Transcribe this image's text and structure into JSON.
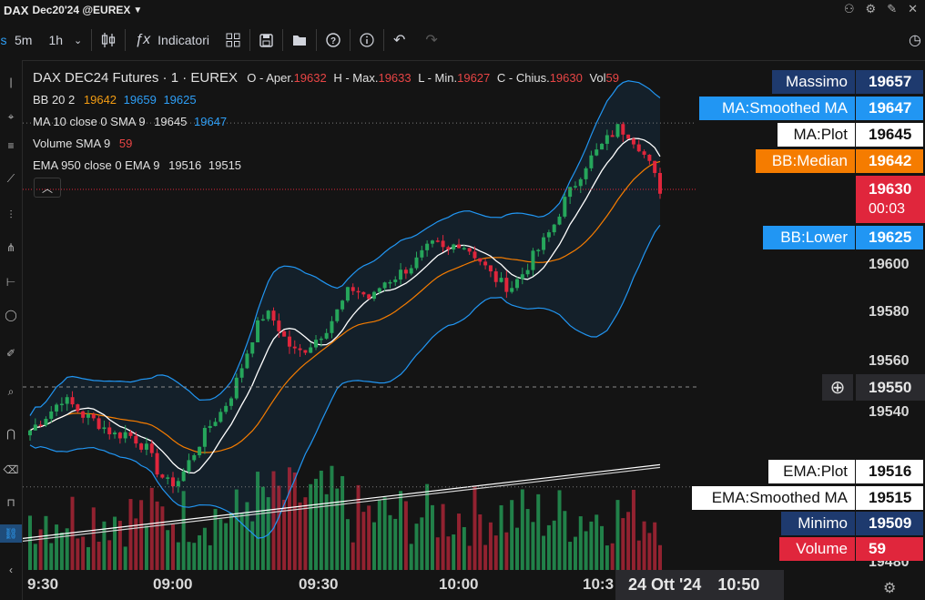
{
  "window": {
    "symbol": "DAX",
    "contract": "Dec20'24 @EUREX"
  },
  "toolbar": {
    "interval_5m": "5m",
    "interval_1h": "1h",
    "indicators_label": "Indicatori"
  },
  "legend": {
    "title": "DAX DEC24 Futures · 1 · EUREX",
    "o_label": "O - Aper.",
    "o_val": "19632",
    "h_label": "H - Max.",
    "h_val": "19633",
    "l_label": "L - Min.",
    "l_val": "19627",
    "c_label": "C - Chius.",
    "c_val": "19630",
    "vol_label": "Vol",
    "vol_val": "59",
    "bb_label": "BB 20 2",
    "bb_v1": "19642",
    "bb_v2": "19659",
    "bb_v3": "19625",
    "ma_label": "MA 10 close 0 SMA 9",
    "ma_v1": "19645",
    "ma_v2": "19647",
    "volsma_label": "Volume SMA 9",
    "volsma_v": "59",
    "ema_label": "EMA 950 close 0 EMA 9",
    "ema_v1": "19516",
    "ema_v2": "19515"
  },
  "price_axis": {
    "ticks": [
      "19600",
      "19580",
      "19560",
      "19540",
      "19480"
    ],
    "crosshair_price": "19550"
  },
  "tags": [
    {
      "name": "Massimo",
      "value": "19657",
      "nbg": "#1e3a6e",
      "ncol": "#ffffff",
      "vbg": "#1e3a6e",
      "vcol": "#ffffff"
    },
    {
      "name": "MA:Smoothed MA",
      "value": "19647",
      "nbg": "#2196f3",
      "ncol": "#ffffff",
      "vbg": "#2196f3",
      "vcol": "#ffffff"
    },
    {
      "name": "MA:Plot",
      "value": "19645",
      "nbg": "#ffffff",
      "ncol": "#111111",
      "vbg": "#ffffff",
      "vcol": "#111111"
    },
    {
      "name": "BB:Median",
      "value": "19642",
      "nbg": "#f57c00",
      "ncol": "#ffffff",
      "vbg": "#f57c00",
      "vcol": "#ffffff"
    },
    {
      "name": "BB:Lower",
      "value": "19625",
      "nbg": "#2196f3",
      "ncol": "#ffffff",
      "vbg": "#2196f3",
      "vcol": "#ffffff"
    },
    {
      "name": "EMA:Plot",
      "value": "19516",
      "nbg": "#ffffff",
      "ncol": "#111111",
      "vbg": "#ffffff",
      "vcol": "#111111"
    },
    {
      "name": "EMA:Smoothed MA",
      "value": "19515",
      "nbg": "#ffffff",
      "ncol": "#111111",
      "vbg": "#ffffff",
      "vcol": "#111111"
    },
    {
      "name": "Minimo",
      "value": "19509",
      "nbg": "#1e3a6e",
      "ncol": "#ffffff",
      "vbg": "#1e3a6e",
      "vcol": "#ffffff"
    },
    {
      "name": "Volume",
      "value": "59",
      "nbg": "#e0263c",
      "ncol": "#ffffff",
      "vbg": "#e0263c",
      "vcol": "#ffffff"
    }
  ],
  "last_price": {
    "value": "19630",
    "countdown": "00:03"
  },
  "time_axis": {
    "labels": [
      "9:30",
      "09:00",
      "09:30",
      "10:00",
      "10:3"
    ],
    "crosshair_date": "24 Ott '24",
    "crosshair_time": "10:50"
  },
  "chart_data": {
    "type": "candlestick",
    "symbol": "DAX DEC24 Futures",
    "interval": "1",
    "exchange": "EUREX",
    "last_bar": {
      "open": 19632,
      "high": 19633,
      "low": 19627,
      "close": 19630,
      "volume": 59
    },
    "indicators": {
      "bollinger_bands": {
        "length": 20,
        "stddev": 2,
        "median": 19642,
        "upper": 19659,
        "lower": 19625
      },
      "moving_average": {
        "length": 10,
        "plot": 19645,
        "smoothed": 19647
      },
      "ema": {
        "length": 950,
        "plot": 19516,
        "smoothed": 19515
      },
      "volume_sma": {
        "length": 9,
        "value": 59
      }
    },
    "session_high": 19657,
    "session_low": 19509,
    "close_path": [
      19532,
      19536,
      19540,
      19545,
      19542,
      19538,
      19536,
      19533,
      19530,
      19531,
      19528,
      19524,
      19515,
      19510,
      19512,
      19520,
      19528,
      19535,
      19540,
      19548,
      19560,
      19572,
      19580,
      19576,
      19568,
      19563,
      19566,
      19570,
      19575,
      19582,
      19590,
      19588,
      19585,
      19592,
      19594,
      19597,
      19600,
      19605,
      19608,
      19604,
      19609,
      19606,
      19602,
      19596,
      19592,
      19590,
      19595,
      19602,
      19608,
      19615,
      19625,
      19632,
      19640,
      19645,
      19650,
      19655,
      19653,
      19648,
      19640,
      19630
    ],
    "colors": {
      "up": "#26a65b",
      "down": "#e0263c",
      "ma": "#ffffff",
      "bb_median": "#f57c00",
      "bb_band": "#2196f3",
      "ema": "#ffffff"
    }
  }
}
